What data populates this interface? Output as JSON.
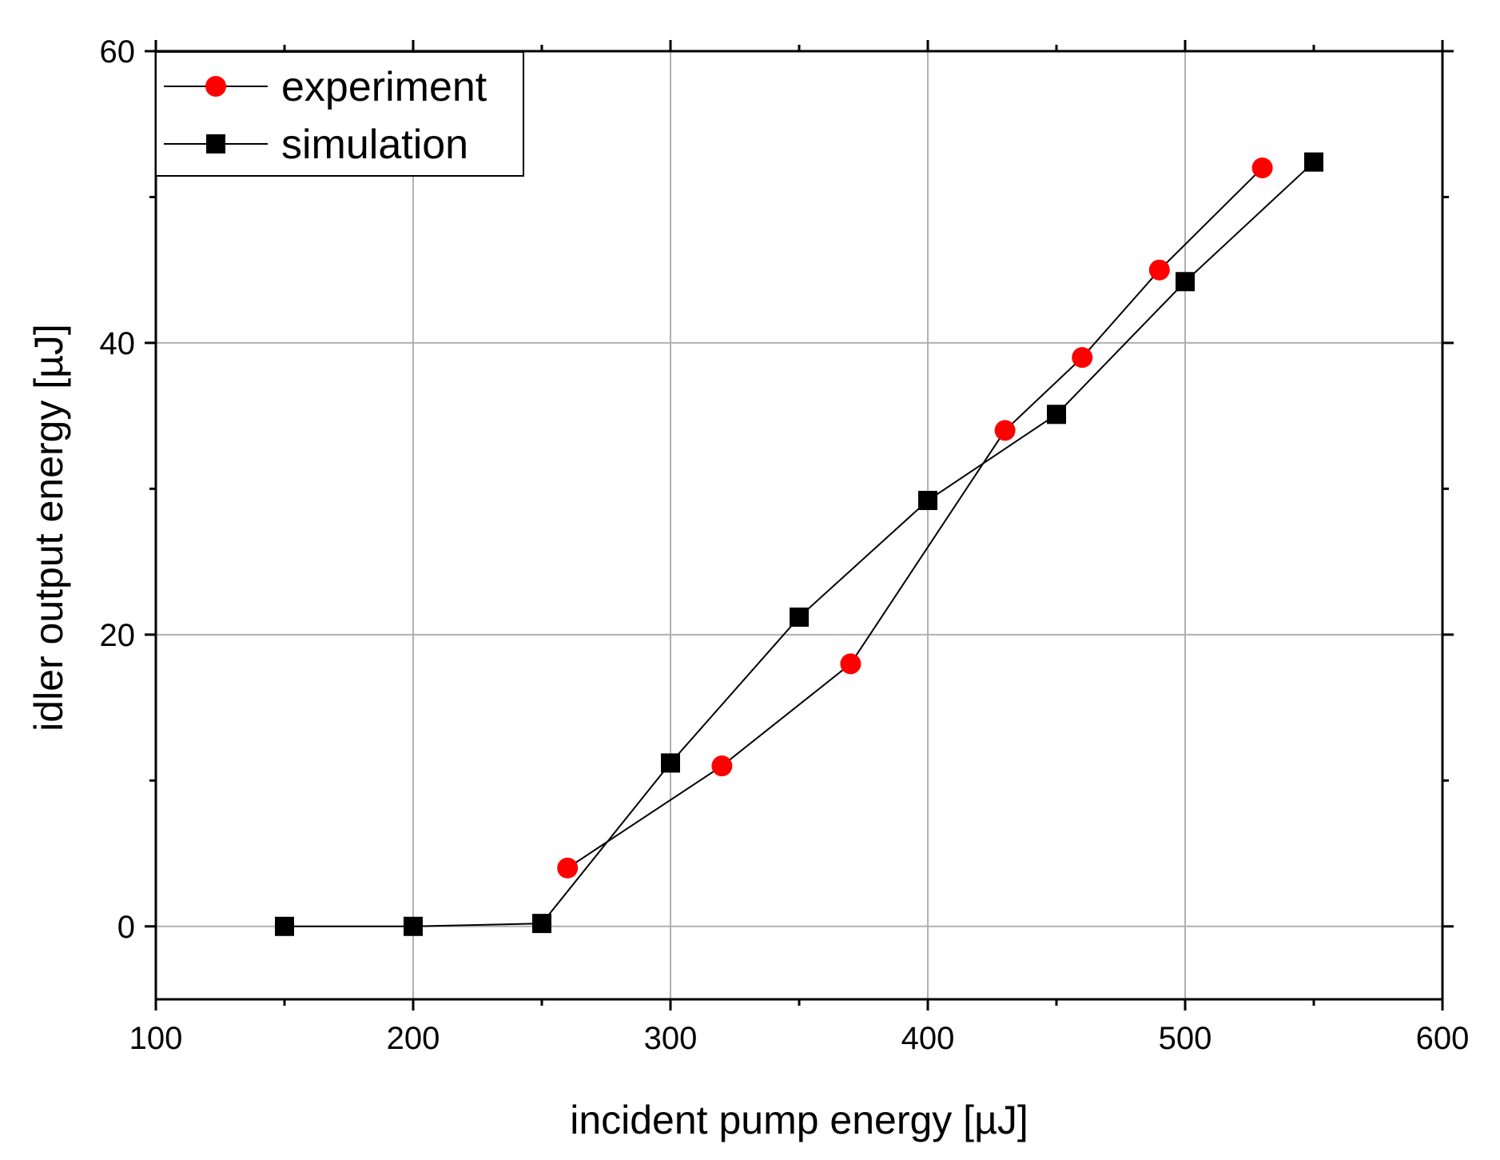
{
  "chart_data": {
    "type": "line",
    "xlabel": "incident pump energy [µJ]",
    "ylabel": "idler output energy [µJ]",
    "xlim": [
      100,
      600
    ],
    "ylim": [
      -5,
      60
    ],
    "xticks": [
      100,
      200,
      300,
      400,
      500,
      600
    ],
    "yticks": [
      0,
      20,
      40,
      60
    ],
    "x_minor_ticks": [
      150,
      250,
      350,
      450,
      550
    ],
    "y_minor_ticks": [
      10,
      30,
      50
    ],
    "grid": true,
    "legend_position": "top-left",
    "series": [
      {
        "name": "experiment",
        "marker": "circle",
        "color": "#ff0000",
        "x": [
          260,
          320,
          370,
          430,
          460,
          490,
          530
        ],
        "y": [
          4,
          11,
          18,
          34,
          39,
          45,
          52
        ]
      },
      {
        "name": "simulation",
        "marker": "square",
        "color": "#000000",
        "x": [
          150,
          200,
          250,
          300,
          350,
          400,
          450,
          500,
          550
        ],
        "y": [
          0,
          0,
          0.2,
          11.2,
          21.2,
          29.2,
          35.1,
          44.2,
          52.4
        ]
      }
    ]
  }
}
